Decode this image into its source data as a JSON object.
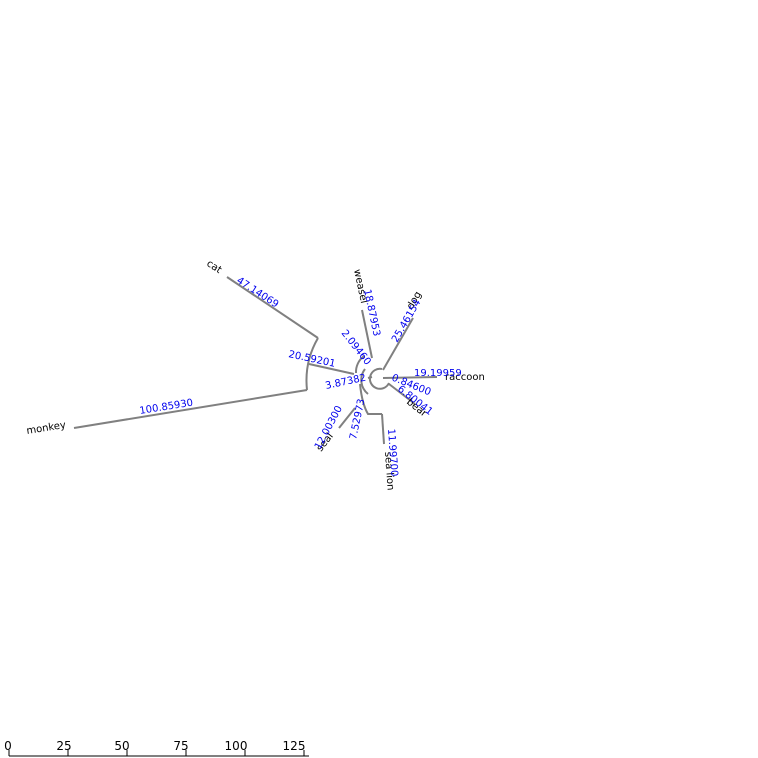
{
  "tree": {
    "leaves": [
      {
        "id": "cat",
        "label": "cat"
      },
      {
        "id": "monkey",
        "label": "monkey"
      },
      {
        "id": "weasel",
        "label": "weasel"
      },
      {
        "id": "dog",
        "label": "dog"
      },
      {
        "id": "raccoon",
        "label": "raccoon"
      },
      {
        "id": "bear",
        "label": "bear"
      },
      {
        "id": "sea-lion",
        "label": "sea lion"
      },
      {
        "id": "seal",
        "label": "seal"
      }
    ],
    "branch_lengths": [
      {
        "id": "cat",
        "value": "47.14069"
      },
      {
        "id": "monkey",
        "value": "100.85930"
      },
      {
        "id": "catmonkey",
        "value": "20.59201"
      },
      {
        "id": "weasel",
        "value": "18.87953"
      },
      {
        "id": "weaseldog",
        "value": "2.09460"
      },
      {
        "id": "dog",
        "value": "25.46154"
      },
      {
        "id": "root",
        "value": "3.87382"
      },
      {
        "id": "raccoon",
        "value": "19.19959"
      },
      {
        "id": "raccoonbear",
        "value": "0.84600"
      },
      {
        "id": "bear",
        "value": "6.80041"
      },
      {
        "id": "sealgroup",
        "value": "7.52973"
      },
      {
        "id": "sea-lion",
        "value": "11.99700"
      },
      {
        "id": "seal",
        "value": "12.00300"
      }
    ]
  },
  "scale": {
    "ticks": [
      "0",
      "25",
      "50",
      "75",
      "100",
      "125"
    ]
  }
}
